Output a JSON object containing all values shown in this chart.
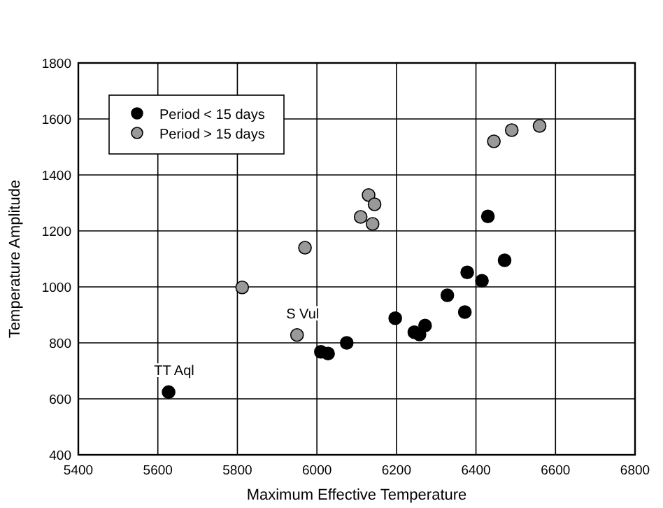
{
  "chart_data": {
    "type": "scatter",
    "xlabel": "Maximum Effective Temperature",
    "ylabel": "Temperature Amplitude",
    "xlim": [
      5400,
      6800
    ],
    "xticks": [
      5400,
      5600,
      5800,
      6000,
      6200,
      6400,
      6600,
      6800
    ],
    "ylim": [
      400,
      1800
    ],
    "yticks": [
      400,
      600,
      800,
      1000,
      1200,
      1400,
      1600,
      1800
    ],
    "grid": true,
    "legend": "top left",
    "marker": "circle",
    "series": [
      {
        "name": "Period < 15 days",
        "color": "#000000",
        "x": [
          5627,
          6010,
          6028,
          6075,
          6197,
          6245,
          6258,
          6272,
          6328,
          6372,
          6378,
          6415,
          6430,
          6472
        ],
        "values": [
          624,
          768,
          762,
          800,
          888,
          838,
          830,
          862,
          970,
          910,
          1052,
          1022,
          1252,
          1095
        ]
      },
      {
        "name": "Period > 15 days",
        "color": "#999999",
        "x": [
          5812,
          5950,
          5970,
          6110,
          6130,
          6145,
          6140,
          6445,
          6490,
          6560
        ],
        "values": [
          998,
          828,
          1140,
          1250,
          1328,
          1295,
          1225,
          1520,
          1560,
          1575
        ]
      }
    ],
    "annotations": [
      {
        "text": "TT Aql",
        "x": 5627,
        "y": 624
      },
      {
        "text": "S Vul",
        "x": 5950,
        "y": 828
      }
    ]
  }
}
